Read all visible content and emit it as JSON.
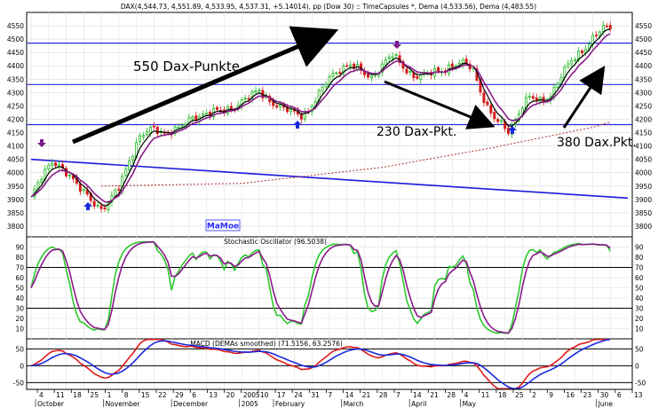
{
  "chart_data": [
    {
      "type": "candlestick",
      "title": "DAX(4,544.73, 4,551.89, 4,533.95, 4,537.31, +5.14014), pp (Dow 30) :: TimeCapsules *, Dema (4,533.56), Dema (4,483.55)",
      "ylim": [
        3760,
        4600
      ],
      "yticks": [
        3800,
        3850,
        3900,
        3950,
        4000,
        4050,
        4100,
        4150,
        4200,
        4250,
        4300,
        4350,
        4400,
        4450,
        4500,
        4550
      ],
      "x_range": [
        0,
        170
      ],
      "anchors": [
        {
          "x": 0,
          "y": 3905
        },
        {
          "x": 3,
          "y": 3980
        },
        {
          "x": 6,
          "y": 4045
        },
        {
          "x": 8,
          "y": 4030
        },
        {
          "x": 10,
          "y": 4000
        },
        {
          "x": 13,
          "y": 3950
        },
        {
          "x": 16,
          "y": 3920
        },
        {
          "x": 18,
          "y": 3890
        },
        {
          "x": 20,
          "y": 3860
        },
        {
          "x": 22,
          "y": 3880
        },
        {
          "x": 25,
          "y": 3950
        },
        {
          "x": 28,
          "y": 4050
        },
        {
          "x": 31,
          "y": 4130
        },
        {
          "x": 35,
          "y": 4170
        },
        {
          "x": 38,
          "y": 4150
        },
        {
          "x": 42,
          "y": 4160
        },
        {
          "x": 46,
          "y": 4210
        },
        {
          "x": 50,
          "y": 4220
        },
        {
          "x": 54,
          "y": 4230
        },
        {
          "x": 58,
          "y": 4250
        },
        {
          "x": 62,
          "y": 4280
        },
        {
          "x": 65,
          "y": 4310
        },
        {
          "x": 68,
          "y": 4270
        },
        {
          "x": 71,
          "y": 4240
        },
        {
          "x": 74,
          "y": 4230
        },
        {
          "x": 77,
          "y": 4220
        },
        {
          "x": 79,
          "y": 4230
        },
        {
          "x": 82,
          "y": 4290
        },
        {
          "x": 85,
          "y": 4360
        },
        {
          "x": 88,
          "y": 4390
        },
        {
          "x": 91,
          "y": 4400
        },
        {
          "x": 94,
          "y": 4380
        },
        {
          "x": 97,
          "y": 4360
        },
        {
          "x": 100,
          "y": 4400
        },
        {
          "x": 103,
          "y": 4440
        },
        {
          "x": 106,
          "y": 4400
        },
        {
          "x": 109,
          "y": 4360
        },
        {
          "x": 112,
          "y": 4360
        },
        {
          "x": 115,
          "y": 4380
        },
        {
          "x": 118,
          "y": 4390
        },
        {
          "x": 121,
          "y": 4400
        },
        {
          "x": 124,
          "y": 4410
        },
        {
          "x": 126,
          "y": 4390
        },
        {
          "x": 128,
          "y": 4310
        },
        {
          "x": 130,
          "y": 4240
        },
        {
          "x": 132,
          "y": 4200
        },
        {
          "x": 134,
          "y": 4180
        },
        {
          "x": 136,
          "y": 4160
        },
        {
          "x": 138,
          "y": 4200
        },
        {
          "x": 140,
          "y": 4250
        },
        {
          "x": 142,
          "y": 4280
        },
        {
          "x": 145,
          "y": 4270
        },
        {
          "x": 148,
          "y": 4290
        },
        {
          "x": 151,
          "y": 4360
        },
        {
          "x": 154,
          "y": 4420
        },
        {
          "x": 157,
          "y": 4460
        },
        {
          "x": 160,
          "y": 4500
        },
        {
          "x": 163,
          "y": 4540
        },
        {
          "x": 165,
          "y": 4545
        }
      ],
      "hlines": [
        4485,
        4330,
        4180
      ],
      "long_ma_line": {
        "from": {
          "x": 0,
          "y": 4050
        },
        "to": {
          "x": 170,
          "y": 3905
        }
      },
      "dotted_ma": [
        {
          "x": 20,
          "y": 3950
        },
        {
          "x": 60,
          "y": 3960
        },
        {
          "x": 100,
          "y": 4020
        },
        {
          "x": 130,
          "y": 4090
        },
        {
          "x": 160,
          "y": 4170
        },
        {
          "x": 165,
          "y": 4190
        }
      ],
      "annotations": [
        {
          "text": "550 Dax-Punkte"
        },
        {
          "text": "230 Dax-Pkt."
        },
        {
          "text": "380 Dax.Pkt."
        }
      ],
      "watermark": "MaMoe"
    },
    {
      "type": "line",
      "title": "Stochastic Oscillator (96.5038)",
      "ylim": [
        0,
        100
      ],
      "yticks": [
        10,
        20,
        30,
        40,
        50,
        60,
        70,
        80,
        90
      ],
      "hlines": [
        70,
        30
      ]
    },
    {
      "type": "line",
      "title": "MACD (DEMAs smoothed) (71.5156, 63.2576)",
      "ylim": [
        -70,
        80
      ],
      "yticks": [
        -50,
        0,
        50
      ],
      "hlines": [
        50,
        0,
        -50
      ]
    }
  ],
  "x_axis": {
    "day_labels": [
      "4",
      "11",
      "18",
      "25",
      "1",
      "8",
      "15",
      "22",
      "29",
      "6",
      "13",
      "20",
      "2005",
      "10",
      "17",
      "24",
      "31",
      "7",
      "14",
      "21",
      "28",
      "7",
      "14",
      "21",
      "28",
      "4",
      "11",
      "18",
      "25",
      "2",
      "9",
      "16",
      "23",
      "30",
      "6",
      "13"
    ],
    "month_labels": [
      "October",
      "November",
      "December",
      "2005",
      "February",
      "March",
      "April",
      "May",
      "June"
    ]
  }
}
